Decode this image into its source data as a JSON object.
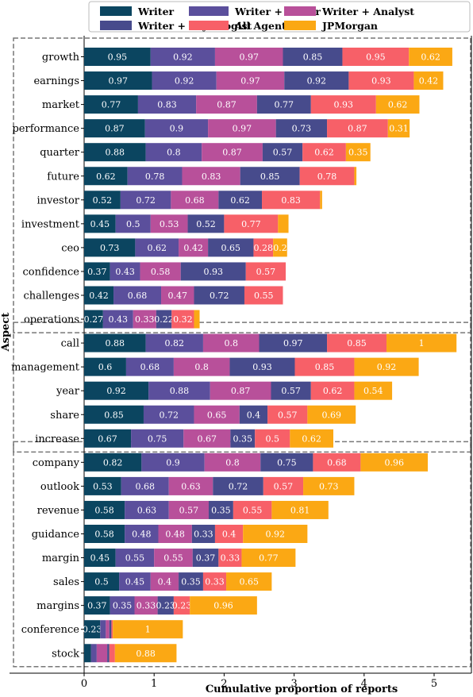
{
  "chart_data": {
    "type": "bar",
    "orientation": "horizontal",
    "stacked": true,
    "xlabel": "Cumulative proportion of reports",
    "ylabel": "Aspect",
    "xlim": [
      0,
      5.4
    ],
    "xticks": [
      0,
      1,
      2,
      3,
      4,
      5
    ],
    "legend_position": "top",
    "categories": [
      "growth",
      "earnings",
      "market",
      "performance",
      "quarter",
      "future",
      "investor",
      "investment",
      "ceo",
      "confidence",
      "challenges",
      "operations",
      "call",
      "management",
      "year",
      "share",
      "increase",
      "company",
      "outlook",
      "revenue",
      "guidance",
      "margin",
      "sales",
      "margins",
      "conference",
      "stock"
    ],
    "groups": [
      {
        "start": "growth",
        "end": "operations"
      },
      {
        "start": "call",
        "end": "increase"
      },
      {
        "start": "company",
        "end": "stock"
      }
    ],
    "series": [
      {
        "name": "Writer",
        "color": "#0b4560",
        "values": [
          0.95,
          0.97,
          0.77,
          0.87,
          0.88,
          0.62,
          0.52,
          0.45,
          0.73,
          0.37,
          0.42,
          0.27,
          0.88,
          0.6,
          0.92,
          0.85,
          0.67,
          0.82,
          0.53,
          0.58,
          0.58,
          0.45,
          0.5,
          0.37,
          0.23,
          0.1
        ]
      },
      {
        "name": "Writer + Editor",
        "color": "#5b4f9c",
        "values": [
          0.92,
          0.92,
          0.83,
          0.9,
          0.8,
          0.78,
          0.72,
          0.5,
          0.62,
          0.43,
          0.68,
          0.43,
          0.82,
          0.68,
          0.88,
          0.72,
          0.75,
          0.9,
          0.68,
          0.63,
          0.48,
          0.55,
          0.45,
          0.35,
          0.08,
          0.08
        ]
      },
      {
        "name": "Writer + Analyst",
        "color": "#b8509a",
        "values": [
          0.97,
          0.97,
          0.87,
          0.97,
          0.87,
          0.83,
          0.68,
          0.53,
          0.42,
          0.58,
          0.47,
          0.33,
          0.8,
          0.8,
          0.87,
          0.65,
          0.67,
          0.8,
          0.63,
          0.57,
          0.48,
          0.55,
          0.4,
          0.33,
          0.05,
          0.15
        ]
      },
      {
        "name": "Writer + Psycologist",
        "color": "#474b8c",
        "values": [
          0.85,
          0.92,
          0.77,
          0.73,
          0.57,
          0.85,
          0.62,
          0.52,
          0.65,
          0.93,
          0.72,
          0.22,
          0.97,
          0.93,
          0.57,
          0.4,
          0.35,
          0.75,
          0.72,
          0.35,
          0.33,
          0.37,
          0.35,
          0.23,
          0.03,
          0.03
        ]
      },
      {
        "name": "All Agents",
        "color": "#f76068",
        "values": [
          0.95,
          0.93,
          0.93,
          0.87,
          0.62,
          0.78,
          0.83,
          0.77,
          0.28,
          0.57,
          0.55,
          0.32,
          0.85,
          0.85,
          0.62,
          0.57,
          0.5,
          0.68,
          0.57,
          0.55,
          0.4,
          0.33,
          0.33,
          0.23,
          0.02,
          0.08
        ]
      },
      {
        "name": "JPMorgan",
        "color": "#fba814",
        "values": [
          0.62,
          0.42,
          0.62,
          0.31,
          0.35,
          0.03,
          0.03,
          0.15,
          0.2,
          0.0,
          0.0,
          0.08,
          1,
          0.92,
          0.54,
          0.69,
          0.62,
          0.96,
          0.73,
          0.81,
          0.92,
          0.77,
          0.65,
          0.96,
          1,
          0.88
        ]
      }
    ],
    "label_threshold": 0.2
  }
}
